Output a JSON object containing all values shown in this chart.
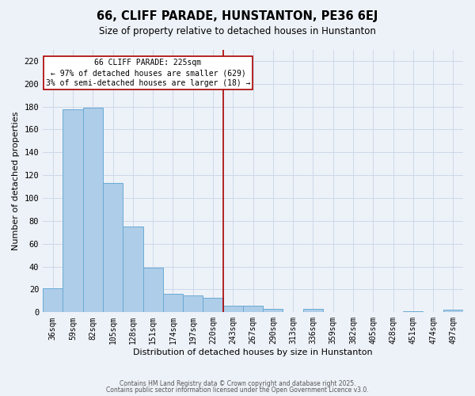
{
  "title": "66, CLIFF PARADE, HUNSTANTON, PE36 6EJ",
  "subtitle": "Size of property relative to detached houses in Hunstanton",
  "xlabel": "Distribution of detached houses by size in Hunstanton",
  "ylabel": "Number of detached properties",
  "bar_labels": [
    "36sqm",
    "59sqm",
    "82sqm",
    "105sqm",
    "128sqm",
    "151sqm",
    "174sqm",
    "197sqm",
    "220sqm",
    "243sqm",
    "267sqm",
    "290sqm",
    "313sqm",
    "336sqm",
    "359sqm",
    "382sqm",
    "405sqm",
    "428sqm",
    "451sqm",
    "474sqm",
    "497sqm"
  ],
  "bar_values": [
    21,
    178,
    179,
    113,
    75,
    39,
    16,
    15,
    13,
    6,
    6,
    3,
    0,
    3,
    0,
    0,
    0,
    0,
    1,
    0,
    2
  ],
  "bar_color": "#aecde8",
  "bar_edge_color": "#6aaad4",
  "ylim": [
    0,
    230
  ],
  "yticks": [
    0,
    20,
    40,
    60,
    80,
    100,
    120,
    140,
    160,
    180,
    200,
    220
  ],
  "property_line_label": "66 CLIFF PARADE: 225sqm",
  "annotation_line1": "← 97% of detached houses are smaller (629)",
  "annotation_line2": "3% of semi-detached houses are larger (18) →",
  "ref_line_color": "#aa0000",
  "grid_color": "#ccd8e8",
  "background_color": "#edf2f8",
  "footer1": "Contains HM Land Registry data © Crown copyright and database right 2025.",
  "footer2": "Contains public sector information licensed under the Open Government Licence v3.0."
}
